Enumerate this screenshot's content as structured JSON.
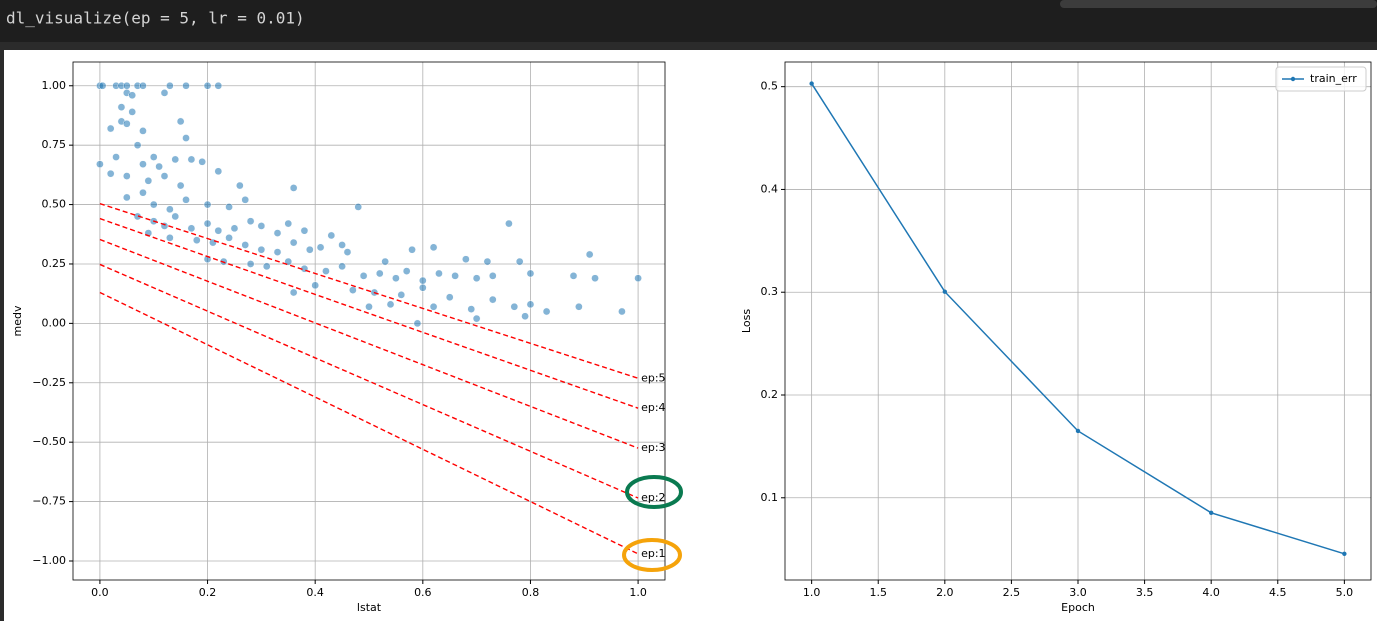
{
  "code": "dl_visualize(ep = 5, lr = 0.01)",
  "chart_data": [
    {
      "type": "scatter",
      "xlabel": "lstat",
      "ylabel": "medv",
      "xlim": [
        -0.05,
        1.05
      ],
      "ylim": [
        -1.08,
        1.1
      ],
      "xticks": [
        {
          "value": 0,
          "label": "0.0"
        },
        0.2,
        0.4,
        0.6,
        0.8,
        {
          "value": 1,
          "label": "1.0"
        }
      ],
      "yticks": [
        {
          "value": -1,
          "label": "−1.00"
        },
        {
          "value": -0.75,
          "label": "−0.75"
        },
        {
          "value": -0.5,
          "label": "−0.50"
        },
        {
          "value": -0.25,
          "label": "−0.25"
        },
        {
          "value": 0,
          "label": "0.00"
        },
        0.25,
        {
          "value": 0.5,
          "label": "0.50"
        },
        0.75,
        {
          "value": 1,
          "label": "1.00"
        }
      ],
      "grid": true,
      "x": [
        0,
        0.005,
        0.03,
        0.04,
        0.05,
        0.07,
        0.08,
        0.13,
        0.16,
        0.2,
        0.22,
        0.05,
        0.06,
        0.12,
        0.04,
        0.06,
        0.02,
        0.04,
        0.05,
        0.08,
        0.15,
        0.16,
        0,
        0.03,
        0.07,
        0.08,
        0.1,
        0.11,
        0.14,
        0.17,
        0.19,
        0.02,
        0.05,
        0.09,
        0.12,
        0.15,
        0.22,
        0.26,
        0.05,
        0.08,
        0.1,
        0.13,
        0.16,
        0.2,
        0.24,
        0.27,
        0.36,
        0.07,
        0.1,
        0.12,
        0.14,
        0.17,
        0.2,
        0.22,
        0.25,
        0.28,
        0.3,
        0.33,
        0.35,
        0.38,
        0.43,
        0.48,
        0.09,
        0.13,
        0.18,
        0.21,
        0.24,
        0.27,
        0.3,
        0.33,
        0.36,
        0.39,
        0.41,
        0.45,
        0.46,
        0.53,
        0.58,
        0.62,
        0.68,
        0.72,
        0.76,
        0.78,
        0.91,
        0.2,
        0.23,
        0.28,
        0.31,
        0.35,
        0.38,
        0.42,
        0.45,
        0.49,
        0.52,
        0.55,
        0.57,
        0.6,
        0.63,
        0.66,
        0.7,
        0.73,
        0.8,
        0.88,
        0.92,
        1.0,
        0.36,
        0.4,
        0.47,
        0.51,
        0.56,
        0.6,
        0.62,
        0.65,
        0.69,
        0.73,
        0.77,
        0.79,
        0.8,
        0.83,
        0.89,
        0.97,
        0.59,
        0.5,
        0.54,
        0.7
      ],
      "series": [
        {
          "color": "#1f77b4",
          "values": [
            1,
            1,
            1,
            1,
            1,
            1,
            1,
            1,
            1,
            1,
            1,
            0.97,
            0.96,
            0.97,
            0.91,
            0.89,
            0.82,
            0.85,
            0.84,
            0.81,
            0.85,
            0.78,
            0.67,
            0.7,
            0.75,
            0.67,
            0.7,
            0.66,
            0.69,
            0.69,
            0.68,
            0.63,
            0.62,
            0.6,
            0.62,
            0.58,
            0.64,
            0.58,
            0.53,
            0.55,
            0.5,
            0.48,
            0.52,
            0.5,
            0.49,
            0.52,
            0.57,
            0.45,
            0.43,
            0.41,
            0.45,
            0.4,
            0.42,
            0.39,
            0.4,
            0.43,
            0.41,
            0.38,
            0.42,
            0.39,
            0.37,
            0.49,
            0.38,
            0.36,
            0.35,
            0.34,
            0.36,
            0.33,
            0.31,
            0.3,
            0.34,
            0.31,
            0.32,
            0.33,
            0.3,
            0.26,
            0.31,
            0.32,
            0.27,
            0.26,
            0.42,
            0.26,
            0.29,
            0.27,
            0.26,
            0.25,
            0.24,
            0.26,
            0.23,
            0.22,
            0.24,
            0.2,
            0.21,
            0.19,
            0.22,
            0.18,
            0.21,
            0.2,
            0.19,
            0.2,
            0.21,
            0.2,
            0.19,
            0.19,
            0.13,
            0.16,
            0.14,
            0.13,
            0.12,
            0.15,
            0.07,
            0.11,
            0.06,
            0.1,
            0.07,
            0.03,
            0.08,
            0.05,
            0.07,
            0.05,
            0,
            0.07,
            0.08,
            0.02
          ]
        }
      ],
      "lines": [
        {
          "label": "ep:1",
          "color": "#ff0000",
          "x": [
            0,
            1
          ],
          "values": [
            0.13,
            -0.97
          ]
        },
        {
          "label": "ep:2",
          "color": "#ff0000",
          "x": [
            0,
            1
          ],
          "values": [
            0.248,
            -0.735
          ]
        },
        {
          "label": "ep:3",
          "color": "#ff0000",
          "x": [
            0,
            1
          ],
          "values": [
            0.353,
            -0.525
          ]
        },
        {
          "label": "ep:4",
          "color": "#ff0000",
          "x": [
            0,
            1
          ],
          "values": [
            0.441,
            -0.357
          ]
        },
        {
          "label": "ep:5",
          "color": "#ff0000",
          "x": [
            0,
            1
          ],
          "values": [
            0.504,
            -0.231
          ]
        }
      ]
    },
    {
      "type": "line",
      "xlabel": "Epoch",
      "ylabel": "Loss",
      "xlim": [
        0.8,
        5.2
      ],
      "ylim": [
        0.02,
        0.524
      ],
      "xticks": [
        {
          "value": 1,
          "label": "1.0"
        },
        1.5,
        {
          "value": 2,
          "label": "2.0"
        },
        2.5,
        {
          "value": 3,
          "label": "3.0"
        },
        3.5,
        {
          "value": 4,
          "label": "4.0"
        },
        4.5,
        {
          "value": 5,
          "label": "5.0"
        }
      ],
      "yticks": [
        0.1,
        0.2,
        0.3,
        0.4,
        0.5
      ],
      "grid": true,
      "legend": "upper right",
      "x": [
        1,
        2,
        3,
        4,
        5
      ],
      "series": [
        {
          "name": "train_err",
          "color": "#1f77b4",
          "values": [
            0.503,
            0.3005,
            0.165,
            0.0854,
            0.0455
          ]
        }
      ]
    }
  ]
}
